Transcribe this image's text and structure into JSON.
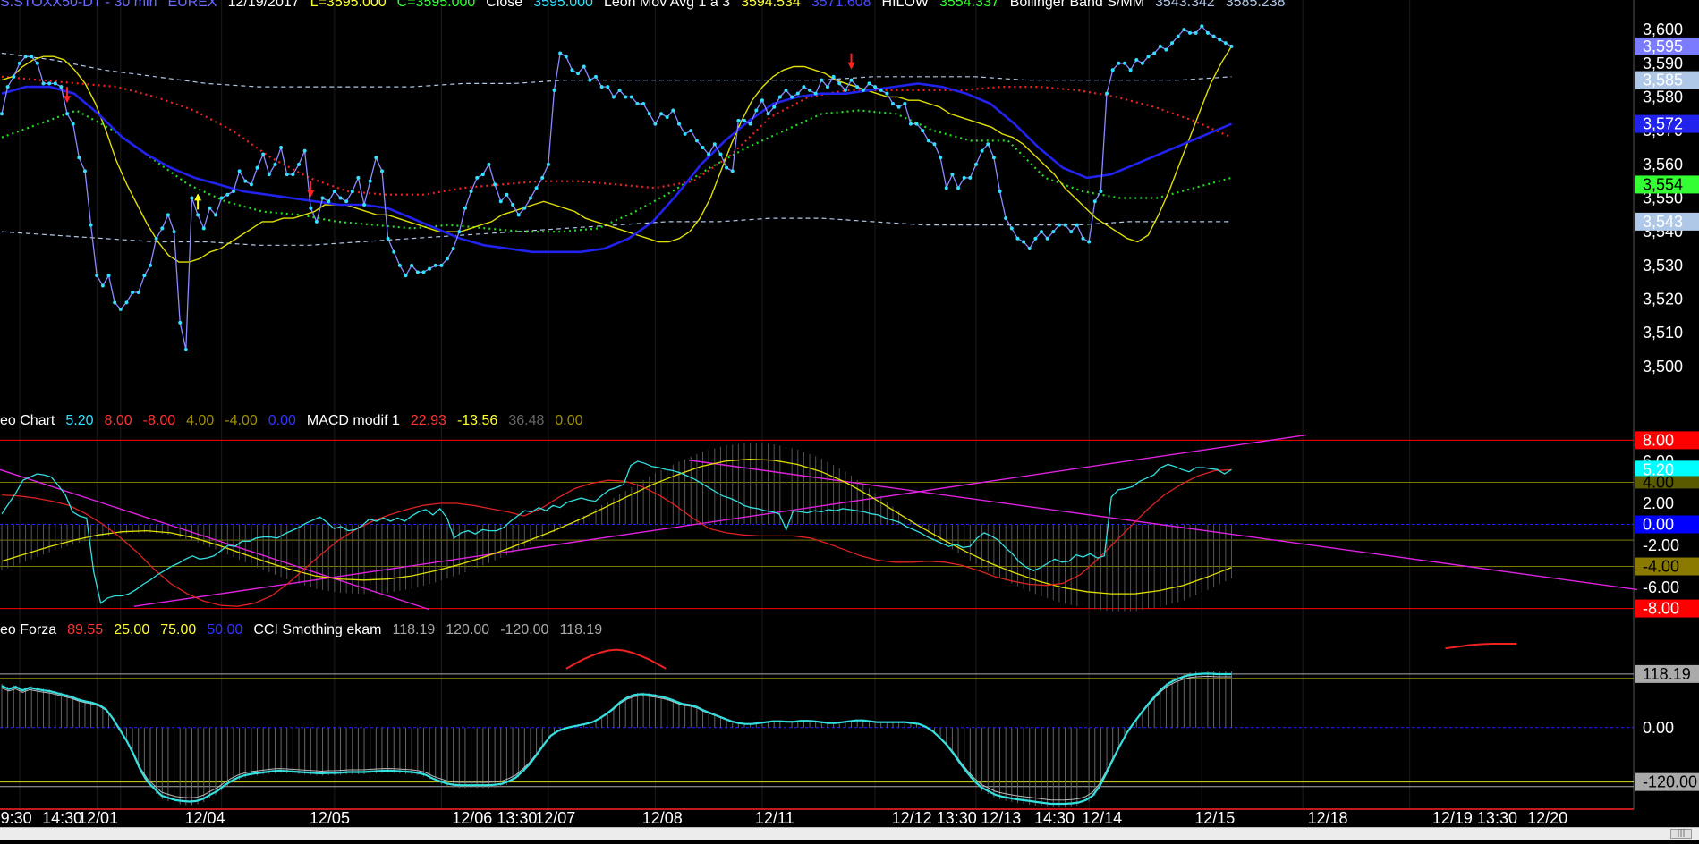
{
  "legend": {
    "price": [
      {
        "text": "S.STOXX50-DT - 30 min",
        "color": "#6a6aff"
      },
      {
        "text": "EUREX",
        "color": "#6a6aff"
      },
      {
        "text": "12/19/2017",
        "color": "#ffffff"
      },
      {
        "text": "L=3595.000",
        "color": "#ffff33"
      },
      {
        "text": "C=3595.000",
        "color": "#33ff33"
      },
      {
        "text": "Close",
        "color": "#ffffff"
      },
      {
        "text": "3595.000",
        "color": "#33e0ff"
      },
      {
        "text": "Leon Mov Avg 1 a 3",
        "color": "#ffffff"
      },
      {
        "text": "3594.534",
        "color": "#ffff33"
      },
      {
        "text": "3571.608",
        "color": "#4a4aff"
      },
      {
        "text": "HILOW",
        "color": "#ffffff"
      },
      {
        "text": "3554.337",
        "color": "#33ff33"
      },
      {
        "text": "Bollinger Band S/MM",
        "color": "#ffffff"
      },
      {
        "text": "3543.342",
        "color": "#b0c8e8"
      },
      {
        "text": "3585.238",
        "color": "#b0c8e8"
      }
    ],
    "macd": [
      {
        "text": "eo Chart",
        "color": "#ffffff"
      },
      {
        "text": "5.20",
        "color": "#33e0ff"
      },
      {
        "text": "8.00",
        "color": "#ff3333"
      },
      {
        "text": "-8.00",
        "color": "#ff3333"
      },
      {
        "text": "4.00",
        "color": "#a09000"
      },
      {
        "text": "-4.00",
        "color": "#a09000"
      },
      {
        "text": "0.00",
        "color": "#3333ff"
      },
      {
        "text": "MACD modif 1",
        "color": "#ffffff"
      },
      {
        "text": "22.93",
        "color": "#ff3333"
      },
      {
        "text": "-13.56",
        "color": "#ffff33"
      },
      {
        "text": "36.48",
        "color": "#666666"
      },
      {
        "text": "0.00",
        "color": "#a09000"
      }
    ],
    "cci": [
      {
        "text": "eo Forza",
        "color": "#ffffff"
      },
      {
        "text": "89.55",
        "color": "#ff3333"
      },
      {
        "text": "25.00",
        "color": "#ffff33"
      },
      {
        "text": "75.00",
        "color": "#ffff33"
      },
      {
        "text": "50.00",
        "color": "#3333ff"
      },
      {
        "text": "CCI Smothing ekam",
        "color": "#ffffff"
      },
      {
        "text": "118.19",
        "color": "#aaaaaa"
      },
      {
        "text": "120.00",
        "color": "#aaaaaa"
      },
      {
        "text": "-120.00",
        "color": "#aaaaaa"
      },
      {
        "text": "118.19",
        "color": "#aaaaaa"
      }
    ]
  },
  "axis": {
    "price_ticks": [
      "3,600",
      "3,590",
      "3,580",
      "3,570",
      "3,560",
      "3,550",
      "3,540",
      "3,530",
      "3,520",
      "3,510",
      "3,500"
    ],
    "price_tick_values": [
      3600,
      3590,
      3580,
      3570,
      3560,
      3550,
      3540,
      3530,
      3520,
      3510,
      3500
    ],
    "price_badges": [
      {
        "text": "3,595",
        "value": 3595,
        "bg": "#7b7bff",
        "fg": "#ffffff"
      },
      {
        "text": "3,585",
        "value": 3585,
        "bg": "#b0c8e8",
        "fg": "#ffffff"
      },
      {
        "text": "3,572",
        "value": 3572,
        "bg": "#2222ee",
        "fg": "#ffffff"
      },
      {
        "text": "3,554",
        "value": 3554,
        "bg": "#33ff33",
        "fg": "#000000"
      },
      {
        "text": "3,543",
        "value": 3543,
        "bg": "#b0c8e8",
        "fg": "#ffffff"
      }
    ],
    "macd_ticks": [
      "6.00",
      "4.00",
      "2.00",
      "0.00",
      "-2.00",
      "-4.00",
      "-6.00"
    ],
    "macd_tick_values": [
      6,
      4,
      2,
      0,
      -2,
      -4,
      -6
    ],
    "macd_badges": [
      {
        "text": "8.00",
        "value": 8,
        "bg": "#ff0000",
        "fg": "#ffffff"
      },
      {
        "text": "5.20",
        "value": 5.2,
        "bg": "#00ffff",
        "fg": "#ffffff"
      },
      {
        "text": "4.00",
        "value": 4,
        "bg": "#5a5a00",
        "fg": "#000000",
        "compact": true
      },
      {
        "text": "0.00",
        "value": 0,
        "bg": "#0000ff",
        "fg": "#ffffff"
      },
      {
        "text": "-4.00",
        "value": -4,
        "bg": "#8a7a00",
        "fg": "#000000"
      },
      {
        "text": "-8.00",
        "value": -8,
        "bg": "#ff0000",
        "fg": "#ffffff"
      }
    ],
    "cci_ticks": [
      "0.00"
    ],
    "cci_tick_values": [
      0
    ],
    "cci_badges": [
      {
        "text": "118.19",
        "value": 118.19,
        "bg": "#aaaaaa",
        "fg": "#000000"
      },
      {
        "text": "-120.00",
        "value": -120,
        "bg": "#aaaaaa",
        "fg": "#000000"
      }
    ],
    "time_labels": [
      {
        "text": "9:30",
        "i": 1
      },
      {
        "text": "14:30",
        "i": 8
      },
      {
        "text": "12/01",
        "i": 14
      },
      {
        "text": "12/04",
        "i": 32
      },
      {
        "text": "12/05",
        "i": 53
      },
      {
        "text": "12/06 13:30",
        "i": 77
      },
      {
        "text": "12/07",
        "i": 91
      },
      {
        "text": "12/08",
        "i": 109
      },
      {
        "text": "12/11",
        "i": 128
      },
      {
        "text": "12/12 13:30",
        "i": 151
      },
      {
        "text": "12/13",
        "i": 166
      },
      {
        "text": "14:30",
        "i": 175
      },
      {
        "text": "12/14",
        "i": 183
      },
      {
        "text": "12/15",
        "i": 202
      },
      {
        "text": "12/18",
        "i": 221
      },
      {
        "text": "12/19 13:30",
        "i": 242
      },
      {
        "text": "12/20",
        "i": 258
      }
    ],
    "grid_i": [
      3,
      16,
      20,
      37,
      56,
      74,
      92,
      110,
      128,
      147,
      164,
      183,
      202,
      219,
      237
    ]
  },
  "chart_data": {
    "type": "line",
    "title": "S.STOXX50-DT - 30 min",
    "price_range": [
      3496,
      3604
    ],
    "macd_range": [
      -8.8,
      8.8
    ],
    "cci_range": [
      -170,
      185
    ],
    "close": [
      3575,
      3583,
      3586,
      3590,
      3592,
      3592,
      3590,
      3584,
      3584,
      3584,
      3583,
      3575,
      3572,
      3562,
      3558,
      3542,
      3527,
      3524,
      3527,
      3519,
      3517,
      3519,
      3522,
      3522,
      3527,
      3530,
      3538,
      3541,
      3545,
      3540,
      3513,
      3505,
      3550,
      3545,
      3541,
      3547,
      3545,
      3550,
      3551,
      3552,
      3558,
      3555,
      3554,
      3559,
      3563,
      3557,
      3560,
      3565,
      3557,
      3557,
      3560,
      3564,
      3547,
      3543,
      3550,
      3549,
      3552,
      3550,
      3549,
      3552,
      3556,
      3548,
      3555,
      3562,
      3558,
      3538,
      3534,
      3530,
      3527,
      3530,
      3528,
      3528,
      3529,
      3530,
      3530,
      3532,
      3535,
      3540,
      3547,
      3552,
      3556,
      3557,
      3560,
      3554,
      3549,
      3551,
      3548,
      3545,
      3547,
      3550,
      3553,
      3556,
      3560,
      3582,
      3593,
      3592,
      3588,
      3587,
      3589,
      3585,
      3586,
      3583,
      3583,
      3580,
      3582,
      3580,
      3580,
      3578,
      3578,
      3575,
      3572,
      3575,
      3574,
      3576,
      3572,
      3569,
      3570,
      3567,
      3565,
      3563,
      3566,
      3563,
      3559,
      3558,
      3573,
      3573,
      3572,
      3576,
      3579,
      3575,
      3577,
      3580,
      3582,
      3580,
      3581,
      3583,
      3582,
      3581,
      3585,
      3583,
      3586,
      3584,
      3582,
      3585,
      3583,
      3582,
      3584,
      3583,
      3582,
      3581,
      3578,
      3577,
      3578,
      3572,
      3572,
      3570,
      3567,
      3566,
      3562,
      3553,
      3557,
      3553,
      3556,
      3556,
      3560,
      3564,
      3566,
      3562,
      3552,
      3544,
      3541,
      3538,
      3537,
      3535,
      3538,
      3540,
      3538,
      3540,
      3542,
      3542,
      3540,
      3542,
      3538,
      3537,
      3549,
      3552,
      3581,
      3588,
      3590,
      3590,
      3588,
      3591,
      3590,
      3592,
      3593,
      3595,
      3594,
      3596,
      3598,
      3600,
      3599,
      3599,
      3601,
      3599,
      3598,
      3597,
      3596,
      3595
    ],
    "ma_yellow": [
      3585,
      3586,
      3589,
      3591,
      3592,
      3592,
      3591,
      3588,
      3584,
      3578,
      3570,
      3561,
      3554,
      3548,
      3542,
      3537,
      3533,
      3531,
      3531,
      3532,
      3534,
      3535,
      3537,
      3539,
      3541,
      3543,
      3543,
      3544,
      3544,
      3545,
      3546,
      3548,
      3548,
      3548,
      3547,
      3546,
      3545,
      3545,
      3544,
      3543,
      3542,
      3541,
      3540,
      3540,
      3540,
      3541,
      3542,
      3543,
      3545,
      3546,
      3547,
      3548,
      3549,
      3548,
      3547,
      3546,
      3544,
      3543,
      3542,
      3541,
      3540,
      3539,
      3538,
      3537,
      3537,
      3538,
      3540,
      3544,
      3550,
      3558,
      3566,
      3573,
      3579,
      3583,
      3586,
      3588,
      3589,
      3589,
      3588,
      3587,
      3585,
      3584,
      3583,
      3582,
      3581,
      3580,
      3580,
      3579,
      3579,
      3578,
      3577,
      3575,
      3574,
      3573,
      3572,
      3571,
      3569,
      3568,
      3566,
      3563,
      3560,
      3557,
      3553,
      3550,
      3547,
      3544,
      3542,
      3540,
      3538,
      3537,
      3539,
      3545,
      3552,
      3560,
      3568,
      3576,
      3584,
      3590,
      3595
    ],
    "ma_blue": [
      3581,
      3583,
      3583,
      3581,
      3575,
      3568,
      3563,
      3559,
      3556,
      3554,
      3552,
      3551,
      3550,
      3549,
      3548,
      3548,
      3547,
      3544,
      3541,
      3538,
      3536,
      3535,
      3534,
      3534,
      3534,
      3535,
      3538,
      3543,
      3551,
      3560,
      3567,
      3573,
      3578,
      3580,
      3581,
      3581,
      3582,
      3583,
      3584,
      3583,
      3581,
      3578,
      3572,
      3565,
      3559,
      3556,
      3557,
      3560,
      3563,
      3566,
      3569,
      3572
    ],
    "hilow_red": [
      3586,
      3585,
      3584,
      3583,
      3580,
      3576,
      3570,
      3562,
      3556,
      3552,
      3551,
      3551,
      3553,
      3554,
      3555,
      3555,
      3554,
      3553,
      3555,
      3563,
      3574,
      3580,
      3582,
      3582,
      3582,
      3582,
      3583,
      3583,
      3582,
      3580,
      3577,
      3573,
      3568
    ],
    "hilow_green": [
      3568,
      3572,
      3576,
      3570,
      3562,
      3554,
      3549,
      3546,
      3545,
      3543,
      3542,
      3541,
      3542,
      3541,
      3540,
      3540,
      3541,
      3546,
      3552,
      3559,
      3565,
      3570,
      3575,
      3576,
      3575,
      3570,
      3567,
      3567,
      3556,
      3552,
      3550,
      3550,
      3553,
      3556
    ],
    "bb_upper": [
      3593,
      3591,
      3588,
      3586,
      3584,
      3583,
      3583,
      3583,
      3583,
      3584,
      3584,
      3585,
      3585,
      3585,
      3585,
      3585,
      3585,
      3586,
      3586,
      3586,
      3585,
      3585,
      3585,
      3585,
      3586
    ],
    "bb_lower": [
      3540,
      3539,
      3538,
      3537,
      3537,
      3536,
      3536,
      3537,
      3538,
      3539,
      3540,
      3541,
      3542,
      3543,
      3543,
      3544,
      3544,
      3543,
      3542,
      3542,
      3542,
      3542,
      3543,
      3543,
      3543
    ],
    "signals": [
      {
        "i": 11,
        "type": "sell"
      },
      {
        "i": 52,
        "type": "sell"
      },
      {
        "i": 143,
        "type": "sell"
      },
      {
        "i": 33,
        "type": "buy"
      },
      {
        "i": 226,
        "type": "buy"
      }
    ],
    "macd_cyan": [
      1,
      2,
      3,
      4.2,
      4.5,
      4.8,
      4.7,
      4.5,
      3.7,
      2.8,
      1.2,
      0.8,
      0.6,
      -4.5,
      -7.5,
      -7,
      -6.8,
      -6.8,
      -6.6,
      -6.2,
      -5.7,
      -5.3,
      -4.8,
      -4.4,
      -4,
      -3.7,
      -3.3,
      -3,
      -3.3,
      -3.2,
      -3,
      -2.5,
      -2,
      -2.1,
      -1.6,
      -1.6,
      -1.3,
      -1.2,
      -1.2,
      -1.3,
      -0.9,
      -0.6,
      -0.3,
      0.1,
      0.4,
      0.7,
      0.2,
      -0.4,
      -0.2,
      -0.6,
      -0.5,
      -0.1,
      0.5,
      0.3,
      0.6,
      0.3,
      0.6,
      0.3,
      0.8,
      1.2,
      1.4,
      0.9,
      1.5,
      0.6,
      -1.3,
      -0.8,
      -0.6,
      -0.9,
      -0.5,
      -0.6,
      -0.6,
      -0.3,
      0.3,
      0.8,
      1.3,
      1.2,
      1.6,
      1.3,
      1.8,
      1.6,
      2.1,
      2.3,
      2.5,
      2.3,
      2.2,
      2.8,
      3.3,
      3.5,
      3.8,
      5.6,
      6,
      5.8,
      5.5,
      5.4,
      5.2,
      5.1,
      4.9,
      4.6,
      4.3,
      3.9,
      3.5,
      3.1,
      2.7,
      2.5,
      2.2,
      1.8,
      1.6,
      1.5,
      1.3,
      1.2,
      1,
      -0.5,
      1.3,
      1.2,
      1.1,
      1.3,
      1.2,
      1.4,
      1.3,
      1.5,
      1.4,
      1.3,
      1.2,
      1,
      0.9,
      0.6,
      0.4,
      0.2,
      -0.2,
      -0.5,
      -0.8,
      -1.2,
      -1.5,
      -1.8,
      -2.1,
      -1.9,
      -2.2,
      -2.1,
      -1.3,
      -0.8,
      -1.1,
      -1.5,
      -2.2,
      -2.8,
      -3.6,
      -4.1,
      -4.4,
      -4.1,
      -3.7,
      -3.3,
      -3.6,
      -3.5,
      -2.9,
      -3.1,
      -2.8,
      -3.2,
      -3,
      2.6,
      3.3,
      3.4,
      3.6,
      4.1,
      4.4,
      4.7,
      5.4,
      5.7,
      5.5,
      5.2,
      5,
      5.4,
      5.4,
      5.3,
      5.2,
      4.8,
      5.2
    ],
    "macd_red": [
      2.8,
      2.7,
      2.5,
      2.2,
      1.8,
      1,
      0,
      -1.2,
      -2.6,
      -4.2,
      -5.6,
      -6.6,
      -7.3,
      -7.7,
      -7.8,
      -7.5,
      -6.8,
      -5.6,
      -4.2,
      -2.8,
      -1.5,
      -0.5,
      0.3,
      0.9,
      1.4,
      1.8,
      2,
      2,
      1.8,
      1.5,
      1.2,
      0.8,
      1.5,
      2.5,
      3.4,
      3.9,
      4.2,
      4.1,
      3.6,
      2.8,
      1.8,
      0.6,
      -0.4,
      -0.8,
      -1,
      -1.1,
      -1.1,
      -1.1,
      -1.3,
      -1.8,
      -2.4,
      -3,
      -3.4,
      -3.6,
      -3.6,
      -3.5,
      -3.6,
      -3.9,
      -4.4,
      -5,
      -5.4,
      -5.7,
      -5.8,
      -5.6,
      -4.8,
      -3.4,
      -1.8,
      -0.2,
      1.4,
      2.8,
      3.8,
      4.6,
      5.1,
      5.2
    ],
    "macd_yellow": [
      -3.5,
      -2.8,
      -2.1,
      -1.5,
      -1,
      -0.7,
      -0.6,
      -0.8,
      -1.3,
      -2,
      -2.8,
      -3.6,
      -4.3,
      -4.9,
      -5.2,
      -5.3,
      -5.2,
      -4.9,
      -4.4,
      -3.8,
      -3.1,
      -2.3,
      -1.4,
      -0.5,
      0.5,
      1.6,
      2.7,
      3.8,
      4.7,
      5.5,
      6,
      6.2,
      6.1,
      5.7,
      5,
      4,
      2.7,
      1.3,
      -0.1,
      -1.4,
      -2.6,
      -3.7,
      -4.6,
      -5.4,
      -6,
      -6.4,
      -6.6,
      -6.6,
      -6.3,
      -5.8,
      -5,
      -4.1
    ],
    "cci_cyan": [
      92,
      85,
      90,
      82,
      88,
      85,
      82,
      80,
      76,
      72,
      68,
      62,
      58,
      55,
      50,
      40,
      20,
      -5,
      -30,
      -60,
      -95,
      -120,
      -135,
      -150,
      -155,
      -160,
      -162,
      -163,
      -162,
      -157,
      -148,
      -140,
      -128,
      -118,
      -110,
      -105,
      -102,
      -100,
      -98,
      -96,
      -95,
      -96,
      -97,
      -98,
      -99,
      -100,
      -101,
      -100,
      -100,
      -99,
      -98,
      -98,
      -98,
      -97,
      -96,
      -95,
      -95,
      -96,
      -97,
      -98,
      -100,
      -104,
      -112,
      -118,
      -123,
      -126,
      -127,
      -127,
      -127,
      -127,
      -127,
      -126,
      -124,
      -118,
      -110,
      -96,
      -80,
      -60,
      -38,
      -18,
      -8,
      -2,
      2,
      5,
      8,
      12,
      20,
      30,
      42,
      56,
      66,
      72,
      74,
      73,
      71,
      68,
      64,
      58,
      52,
      50,
      46,
      38,
      32,
      26,
      20,
      14,
      10,
      8,
      8,
      10,
      12,
      14,
      14,
      13,
      13,
      15,
      15,
      14,
      12,
      10,
      10,
      12,
      14,
      16,
      16,
      14,
      12,
      12,
      12,
      12,
      12,
      10,
      8,
      2,
      -8,
      -22,
      -38,
      -58,
      -80,
      -100,
      -118,
      -132,
      -140,
      -148,
      -152,
      -155,
      -158,
      -160,
      -162,
      -164,
      -166,
      -168,
      -168,
      -168,
      -167,
      -165,
      -160,
      -150,
      -130,
      -100,
      -68,
      -38,
      -10,
      12,
      32,
      52,
      70,
      86,
      98,
      106,
      112,
      116,
      118,
      119,
      119,
      118,
      118,
      118
    ],
    "cci_red": [
      130,
      140,
      150,
      158,
      165,
      170,
      172,
      170,
      165,
      158,
      150,
      140,
      130,
      175,
      178,
      182,
      184,
      185,
      185,
      185
    ]
  }
}
